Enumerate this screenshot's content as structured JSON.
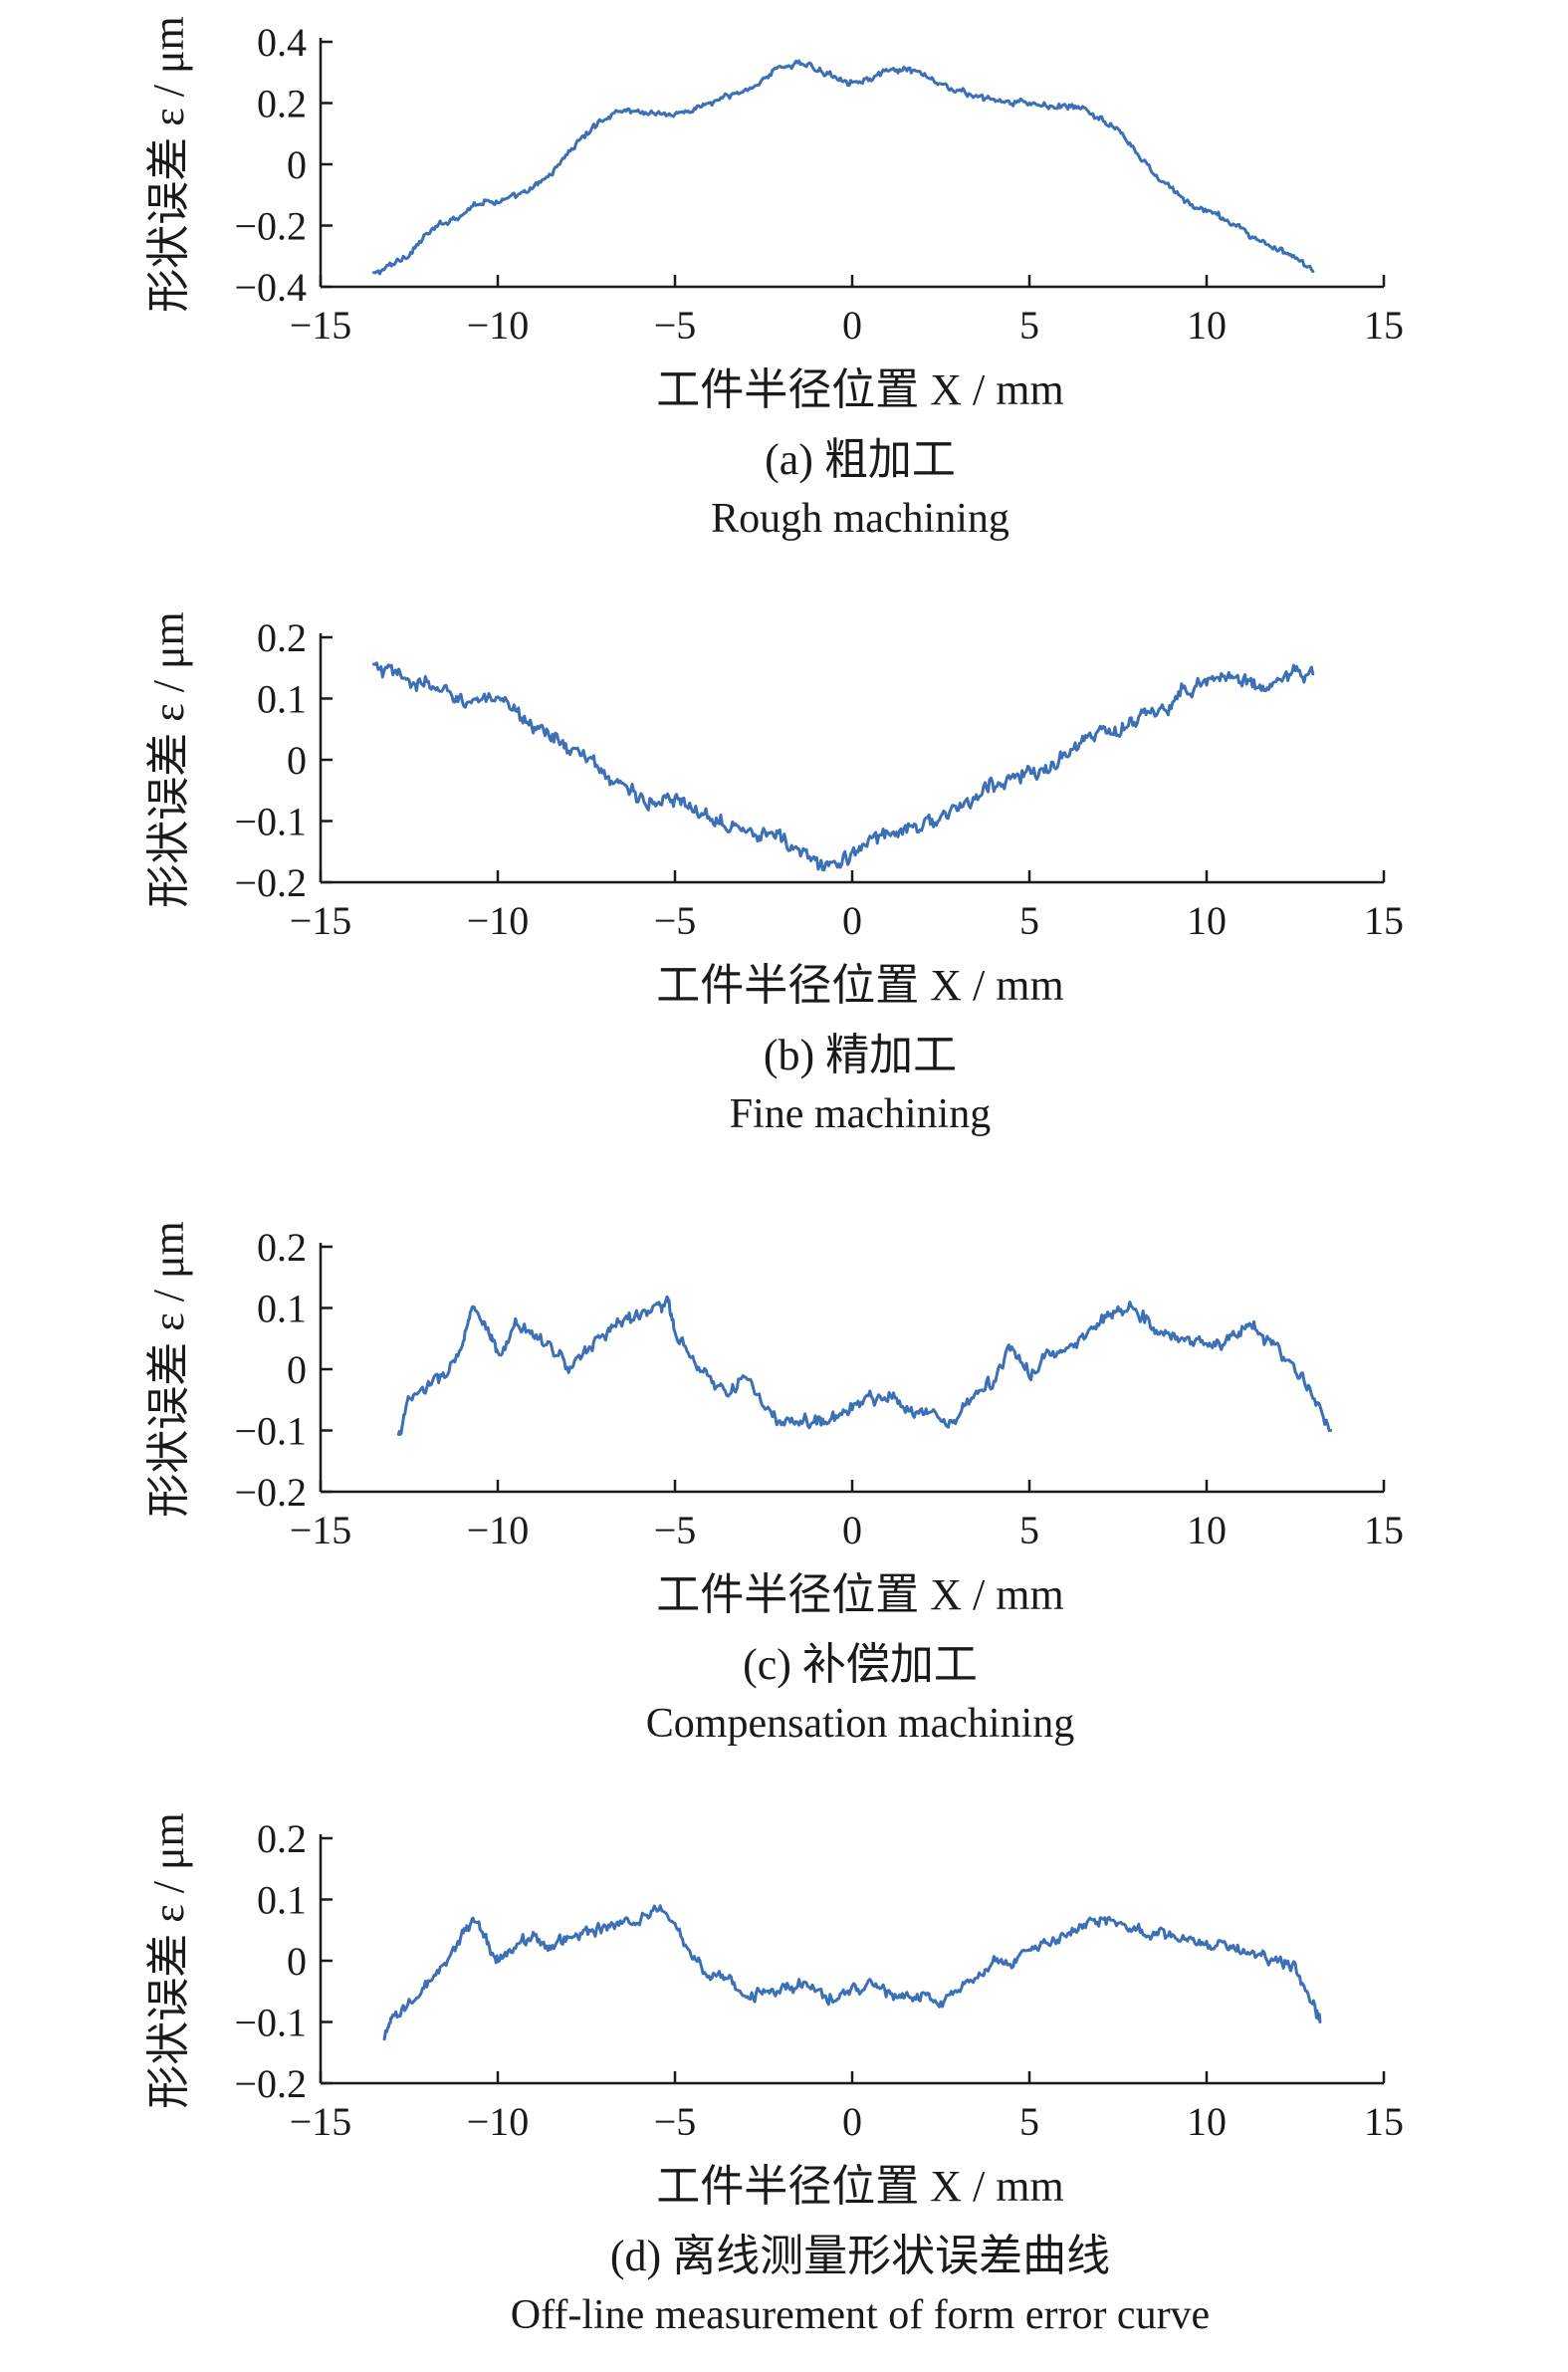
{
  "colors": {
    "series": "#3b6fb6",
    "axis": "#1a1a1a"
  },
  "chart_data": [
    {
      "type": "line",
      "panel": "a",
      "title": "",
      "xlabel": "工件半径位置 X / mm",
      "ylabel": "形状误差 ε / μm",
      "xlim": [
        -15,
        15
      ],
      "ylim": [
        -0.4,
        0.4
      ],
      "xticks": [
        -15,
        -10,
        -5,
        0,
        5,
        10,
        15
      ],
      "yticks": [
        -0.4,
        -0.2,
        0,
        0.2,
        0.4
      ],
      "xtick_labels": [
        "−15",
        "−10",
        "−5",
        "0",
        "5",
        "10",
        "15"
      ],
      "ytick_labels": [
        "−0.4",
        "−0.2",
        "0",
        "0.2",
        "0.4"
      ],
      "caption_zh": "(a) 粗加工",
      "caption_en": "Rough machining",
      "grid": false,
      "noise": 0.01,
      "series": [
        {
          "x": [
            -13.5,
            -13,
            -12.5,
            -12,
            -11.5,
            -11,
            -10.5,
            -10,
            -9.5,
            -9,
            -8.5,
            -8,
            -7.5,
            -7,
            -6.5,
            -6,
            -5.5,
            -5,
            -4.5,
            -4,
            -3.5,
            -3,
            -2.5,
            -2,
            -1.5,
            -1,
            -0.5,
            0,
            0.5,
            1,
            1.5,
            2,
            2.5,
            3,
            3.5,
            4,
            4.5,
            5,
            5.5,
            6,
            6.5,
            7,
            7.5,
            8,
            8.5,
            9,
            9.5,
            10,
            10.5,
            11,
            11.5,
            12,
            12.5,
            13
          ],
          "y": [
            -0.36,
            -0.33,
            -0.29,
            -0.23,
            -0.19,
            -0.16,
            -0.12,
            -0.12,
            -0.11,
            -0.08,
            -0.03,
            0.04,
            0.1,
            0.15,
            0.18,
            0.17,
            0.17,
            0.16,
            0.18,
            0.2,
            0.22,
            0.24,
            0.28,
            0.32,
            0.33,
            0.31,
            0.29,
            0.27,
            0.28,
            0.3,
            0.31,
            0.29,
            0.26,
            0.24,
            0.22,
            0.21,
            0.2,
            0.2,
            0.19,
            0.19,
            0.18,
            0.15,
            0.11,
            0.04,
            -0.03,
            -0.08,
            -0.13,
            -0.15,
            -0.18,
            -0.21,
            -0.25,
            -0.28,
            -0.31,
            -0.35
          ]
        }
      ]
    },
    {
      "type": "line",
      "panel": "b",
      "title": "",
      "xlabel": "工件半径位置 X / mm",
      "ylabel": "形状误差 ε / μm",
      "xlim": [
        -15,
        15
      ],
      "ylim": [
        -0.2,
        0.2
      ],
      "xticks": [
        -15,
        -10,
        -5,
        0,
        5,
        10,
        15
      ],
      "yticks": [
        -0.2,
        -0.1,
        0,
        0.1,
        0.2
      ],
      "xtick_labels": [
        "−15",
        "−10",
        "−5",
        "0",
        "5",
        "10",
        "15"
      ],
      "ytick_labels": [
        "−0.2",
        "−0.1",
        "0",
        "0.1",
        "0.2"
      ],
      "caption_zh": "(b) 精加工",
      "caption_en": "Fine machining",
      "grid": false,
      "noise": 0.012,
      "series": [
        {
          "x": [
            -13.5,
            -13,
            -12.5,
            -12,
            -11.5,
            -11,
            -10.5,
            -10,
            -9.5,
            -9,
            -8.5,
            -8,
            -7.5,
            -7,
            -6.5,
            -6,
            -5.5,
            -5,
            -4.5,
            -4,
            -3.5,
            -3,
            -2.5,
            -2,
            -1.5,
            -1,
            -0.5,
            0,
            0.5,
            1,
            1.5,
            2,
            2.5,
            3,
            3.5,
            4,
            4.5,
            5,
            5.5,
            6,
            6.5,
            7,
            7.5,
            8,
            8.5,
            9,
            9.5,
            10,
            10.5,
            11,
            11.5,
            12,
            12.5,
            13
          ],
          "y": [
            0.15,
            0.14,
            0.13,
            0.12,
            0.11,
            0.1,
            0.1,
            0.09,
            0.08,
            0.06,
            0.04,
            0.02,
            0.0,
            -0.02,
            -0.04,
            -0.06,
            -0.07,
            -0.07,
            -0.08,
            -0.09,
            -0.1,
            -0.11,
            -0.12,
            -0.13,
            -0.15,
            -0.17,
            -0.17,
            -0.16,
            -0.13,
            -0.12,
            -0.11,
            -0.1,
            -0.1,
            -0.08,
            -0.06,
            -0.04,
            -0.03,
            -0.02,
            -0.02,
            0.01,
            0.03,
            0.04,
            0.05,
            0.06,
            0.08,
            0.09,
            0.12,
            0.13,
            0.14,
            0.13,
            0.12,
            0.13,
            0.14,
            0.14
          ]
        }
      ]
    },
    {
      "type": "line",
      "panel": "c",
      "title": "",
      "xlabel": "工件半径位置 X / mm",
      "ylabel": "形状误差 ε / μm",
      "xlim": [
        -15,
        15
      ],
      "ylim": [
        -0.2,
        0.2
      ],
      "xticks": [
        -15,
        -10,
        -5,
        0,
        5,
        10,
        15
      ],
      "yticks": [
        -0.2,
        -0.1,
        0,
        0.1,
        0.2
      ],
      "xtick_labels": [
        "−15",
        "−10",
        "−5",
        "0",
        "5",
        "10",
        "15"
      ],
      "ytick_labels": [
        "−0.2",
        "−0.1",
        "0",
        "0.1",
        "0.2"
      ],
      "caption_zh": "(c) 补偿加工",
      "caption_en": "Compensation machining",
      "grid": false,
      "noise": 0.01,
      "series": [
        {
          "x": [
            -12.8,
            -12.5,
            -12,
            -11.5,
            -11,
            -10.7,
            -10.3,
            -10,
            -9.5,
            -9,
            -8.5,
            -8,
            -7.5,
            -7,
            -6.5,
            -6,
            -5.5,
            -5.2,
            -5,
            -4.5,
            -4,
            -3.5,
            -3,
            -2.5,
            -2,
            -1.5,
            -1,
            -0.5,
            0,
            0.5,
            1,
            1.5,
            2,
            2.5,
            3,
            3.5,
            4,
            4.5,
            5,
            5.5,
            6,
            6.5,
            7,
            7.5,
            8,
            8.5,
            9,
            9.5,
            10,
            10.5,
            11,
            11.5,
            12,
            12.5,
            13,
            13.5
          ],
          "y": [
            -0.11,
            -0.05,
            -0.03,
            -0.01,
            0.04,
            0.1,
            0.06,
            0.02,
            0.07,
            0.06,
            0.04,
            0.0,
            0.03,
            0.06,
            0.08,
            0.09,
            0.1,
            0.11,
            0.06,
            0.01,
            -0.02,
            -0.04,
            -0.01,
            -0.06,
            -0.09,
            -0.09,
            -0.08,
            -0.08,
            -0.06,
            -0.05,
            -0.04,
            -0.06,
            -0.07,
            -0.08,
            -0.08,
            -0.03,
            -0.02,
            0.04,
            -0.01,
            0.02,
            0.03,
            0.05,
            0.08,
            0.1,
            0.1,
            0.07,
            0.05,
            0.05,
            0.04,
            0.04,
            0.07,
            0.06,
            0.03,
            0.0,
            -0.04,
            -0.1
          ]
        }
      ]
    },
    {
      "type": "line",
      "panel": "d",
      "title": "",
      "xlabel": "工件半径位置 X / mm",
      "ylabel": "形状误差 ε / μm",
      "xlim": [
        -15,
        15
      ],
      "ylim": [
        -0.2,
        0.2
      ],
      "xticks": [
        -15,
        -10,
        -5,
        0,
        5,
        10,
        15
      ],
      "yticks": [
        -0.2,
        -0.1,
        0,
        0.1,
        0.2
      ],
      "xtick_labels": [
        "−15",
        "−10",
        "−5",
        "0",
        "5",
        "10",
        "15"
      ],
      "ytick_labels": [
        "−0.2",
        "−0.1",
        "0",
        "0.1",
        "0.2"
      ],
      "caption_zh": "(d) 离线测量形状误差曲线",
      "caption_en": "Off-line measurement of form error curve",
      "grid": false,
      "noise": 0.009,
      "series": [
        {
          "x": [
            -13.2,
            -13,
            -12.5,
            -12,
            -11.5,
            -11,
            -10.7,
            -10.3,
            -10,
            -9.5,
            -9,
            -8.5,
            -8,
            -7.5,
            -7,
            -6.5,
            -6,
            -5.5,
            -5,
            -4.5,
            -4,
            -3.5,
            -3,
            -2.5,
            -2,
            -1.5,
            -1,
            -0.5,
            0,
            0.5,
            1,
            1.5,
            2,
            2.5,
            3,
            3.5,
            4,
            4.5,
            5,
            5.5,
            6,
            6.5,
            7,
            7.5,
            8,
            8.5,
            9,
            9.5,
            10,
            10.5,
            11,
            11.5,
            12,
            12.5,
            13,
            13.2
          ],
          "y": [
            -0.13,
            -0.1,
            -0.07,
            -0.04,
            -0.01,
            0.04,
            0.07,
            0.03,
            0.0,
            0.03,
            0.04,
            0.02,
            0.04,
            0.05,
            0.05,
            0.06,
            0.07,
            0.09,
            0.06,
            0.0,
            -0.02,
            -0.03,
            -0.06,
            -0.05,
            -0.05,
            -0.04,
            -0.05,
            -0.06,
            -0.05,
            -0.04,
            -0.05,
            -0.06,
            -0.06,
            -0.07,
            -0.05,
            -0.03,
            0.0,
            -0.01,
            0.02,
            0.03,
            0.04,
            0.06,
            0.07,
            0.06,
            0.05,
            0.04,
            0.04,
            0.03,
            0.03,
            0.02,
            0.02,
            0.01,
            0.0,
            -0.01,
            -0.07,
            -0.1
          ]
        }
      ]
    }
  ]
}
